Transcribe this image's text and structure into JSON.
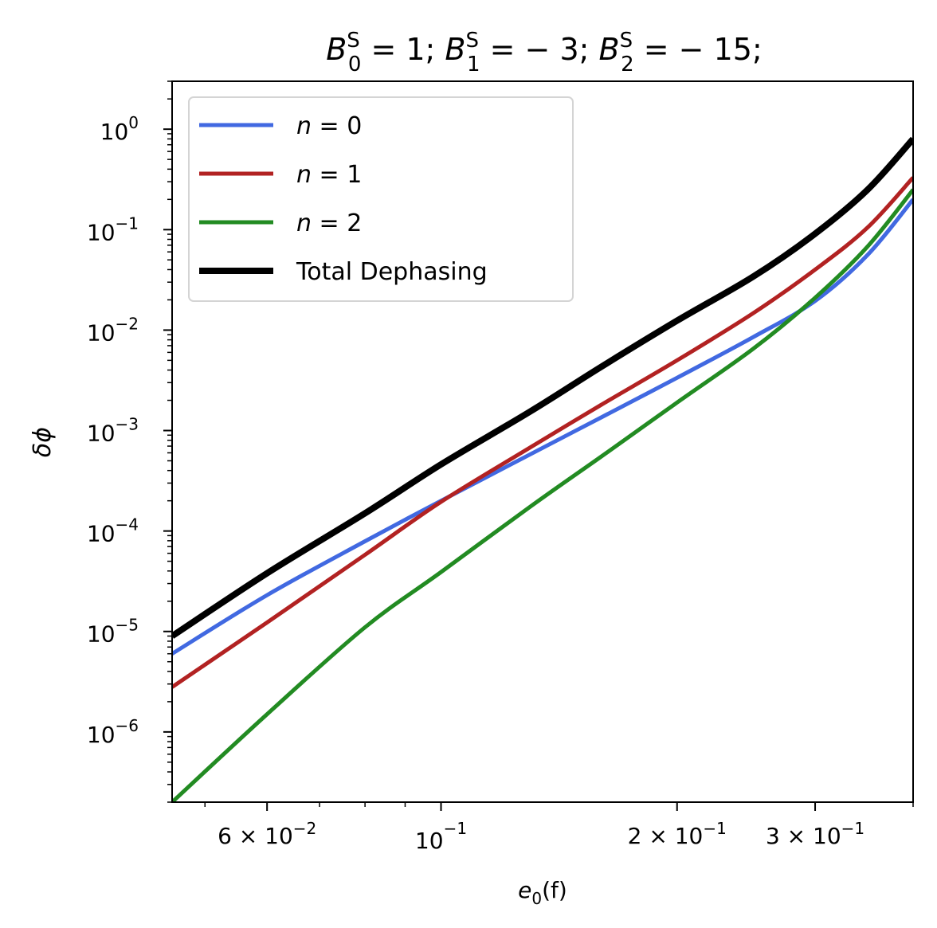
{
  "chart_data": {
    "type": "line",
    "title": {
      "parts": [
        {
          "base": "B",
          "sub": "0",
          "sup": "S",
          "rest": " = 1; "
        },
        {
          "base": "B",
          "sub": "1",
          "sup": "S",
          "rest": " = − 3; "
        },
        {
          "base": "B",
          "sub": "2",
          "sup": "S",
          "rest": " = − 15;"
        }
      ]
    },
    "xlabel": {
      "base": "e",
      "sub": "0",
      "rest": "(f)"
    },
    "ylabel": "δϕ",
    "xscale": "log",
    "yscale": "log",
    "xlim": [
      0.0454,
      0.4
    ],
    "ylim": [
      2e-07,
      3.0
    ],
    "x_ticks": [
      {
        "value": 0.06,
        "mantissa": "6 × 10",
        "exp": "−2"
      },
      {
        "value": 0.1,
        "mantissa": "10",
        "exp": "−1"
      },
      {
        "value": 0.2,
        "mantissa": "2 × 10",
        "exp": "−1"
      },
      {
        "value": 0.3,
        "mantissa": "3 × 10",
        "exp": "−1"
      }
    ],
    "y_ticks": [
      {
        "value": 1.0,
        "mantissa": "10",
        "exp": "0"
      },
      {
        "value": 0.1,
        "mantissa": "10",
        "exp": "−1"
      },
      {
        "value": 0.01,
        "mantissa": "10",
        "exp": "−2"
      },
      {
        "value": 0.001,
        "mantissa": "10",
        "exp": "−3"
      },
      {
        "value": 0.0001,
        "mantissa": "10",
        "exp": "−4"
      },
      {
        "value": 1e-05,
        "mantissa": "10",
        "exp": "−5"
      },
      {
        "value": 1e-06,
        "mantissa": "10",
        "exp": "−6"
      }
    ],
    "legend_position": "upper-left",
    "series": [
      {
        "name": "n = 0",
        "legend_var": "n",
        "legend_rest": " = 0",
        "color": "#4169e1",
        "line_width": 2,
        "x": [
          0.0454,
          0.06,
          0.08,
          0.1,
          0.13,
          0.16,
          0.2,
          0.25,
          0.3,
          0.35,
          0.4
        ],
        "y": [
          6e-06,
          2.3e-05,
          7.9e-05,
          0.0002,
          0.00058,
          0.00135,
          0.00335,
          0.0085,
          0.0195,
          0.056,
          0.2
        ]
      },
      {
        "name": "n = 1",
        "legend_var": "n",
        "legend_rest": " = 1",
        "color": "#b22222",
        "line_width": 2,
        "x": [
          0.0454,
          0.06,
          0.08,
          0.1,
          0.13,
          0.16,
          0.2,
          0.25,
          0.3,
          0.35,
          0.4
        ],
        "y": [
          2.8e-06,
          1.23e-05,
          5.8e-05,
          0.000195,
          0.00068,
          0.0018,
          0.005,
          0.0147,
          0.04,
          0.105,
          0.33
        ]
      },
      {
        "name": "n = 2",
        "legend_var": "n",
        "legend_rest": " = 2",
        "color": "#228b22",
        "line_width": 2,
        "x": [
          0.0454,
          0.06,
          0.08,
          0.1,
          0.13,
          0.16,
          0.2,
          0.25,
          0.3,
          0.35,
          0.4
        ],
        "y": [
          2e-07,
          1.5e-06,
          1.1e-05,
          3.9e-05,
          0.000175,
          0.00055,
          0.0019,
          0.0065,
          0.021,
          0.068,
          0.25
        ]
      },
      {
        "name": "Total Dephasing",
        "legend_var": "",
        "legend_rest": "Total Dephasing",
        "color": "#000000",
        "line_width": 3.2,
        "x": [
          0.0454,
          0.06,
          0.08,
          0.1,
          0.13,
          0.16,
          0.2,
          0.25,
          0.3,
          0.35,
          0.4
        ],
        "y": [
          9e-06,
          3.8e-05,
          0.00015,
          0.00046,
          0.00155,
          0.0043,
          0.0124,
          0.034,
          0.091,
          0.25,
          0.8
        ]
      }
    ]
  }
}
